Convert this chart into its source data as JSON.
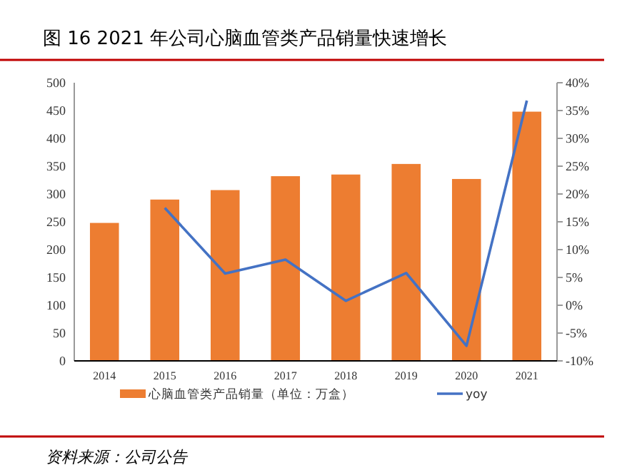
{
  "chart_data": {
    "type": "bar",
    "title": "图  16 2021 年公司心脑血管类产品销量快速增长",
    "categories": [
      "2014",
      "2015",
      "2016",
      "2017",
      "2018",
      "2019",
      "2020",
      "2021"
    ],
    "series": [
      {
        "name": "心脑血管类产品销量（单位：万盒）",
        "color": "#ed7d31",
        "values": [
          248,
          290,
          307,
          332,
          335,
          354,
          327,
          448
        ]
      },
      {
        "name": "yoy",
        "type": "line",
        "axis": "y2",
        "color": "#4472c4",
        "values": [
          null,
          17.5,
          5.7,
          8.2,
          0.8,
          5.8,
          -7.3,
          36.8
        ]
      }
    ],
    "ylim": [
      0,
      500
    ],
    "yticks": [
      0,
      50,
      100,
      150,
      200,
      250,
      300,
      350,
      400,
      450,
      500
    ],
    "y2lim": [
      -10,
      40
    ],
    "y2ticks": [
      {
        "value": -10,
        "label": "-10%"
      },
      {
        "value": -5,
        "label": "-5%"
      },
      {
        "value": 0,
        "label": "0%"
      },
      {
        "value": 5,
        "label": "5%"
      },
      {
        "value": 10,
        "label": "10%"
      },
      {
        "value": 15,
        "label": "15%"
      },
      {
        "value": 20,
        "label": "20%"
      },
      {
        "value": 25,
        "label": "25%"
      },
      {
        "value": 30,
        "label": "30%"
      },
      {
        "value": 35,
        "label": "35%"
      },
      {
        "value": 40,
        "label": "40%"
      }
    ],
    "legend": "bottom",
    "annotations": [
      "资料来源：公司公告"
    ]
  }
}
